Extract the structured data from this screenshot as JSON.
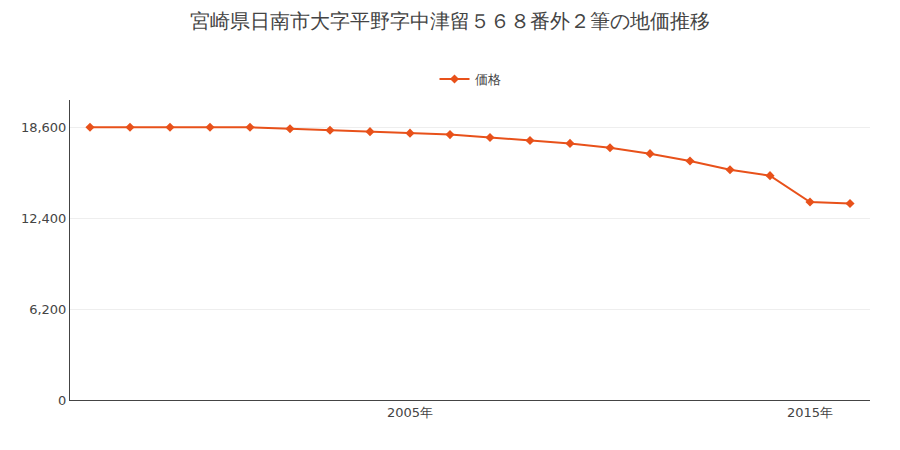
{
  "chart_data": {
    "type": "line",
    "title": "宮崎県日南市大字平野字中津留５６８番外２筆の地価推移",
    "x": [
      1997,
      1998,
      1999,
      2000,
      2001,
      2002,
      2003,
      2004,
      2005,
      2006,
      2007,
      2008,
      2009,
      2010,
      2011,
      2012,
      2013,
      2014,
      2015,
      2016
    ],
    "series": [
      {
        "name": "価格",
        "color": "#e8511a",
        "marker": "diamond",
        "line_style": "solid",
        "values": [
          18600,
          18600,
          18600,
          18600,
          18600,
          18500,
          18400,
          18300,
          18200,
          18100,
          17900,
          17700,
          17500,
          17200,
          16800,
          16300,
          15700,
          15300,
          13500,
          13400
        ]
      }
    ],
    "xlim": [
      1996.5,
      2016.5
    ],
    "xticks": [
      {
        "value": 2005,
        "label": "2005年"
      },
      {
        "value": 2015,
        "label": "2015年"
      }
    ],
    "ylim": [
      0,
      20460
    ],
    "yticks": [
      0,
      {
        "value": 6200,
        "label": "6,200"
      },
      {
        "value": 12400,
        "label": "12,400"
      },
      {
        "value": 18600,
        "label": "18,600"
      }
    ],
    "grid": true,
    "legend": "top"
  }
}
